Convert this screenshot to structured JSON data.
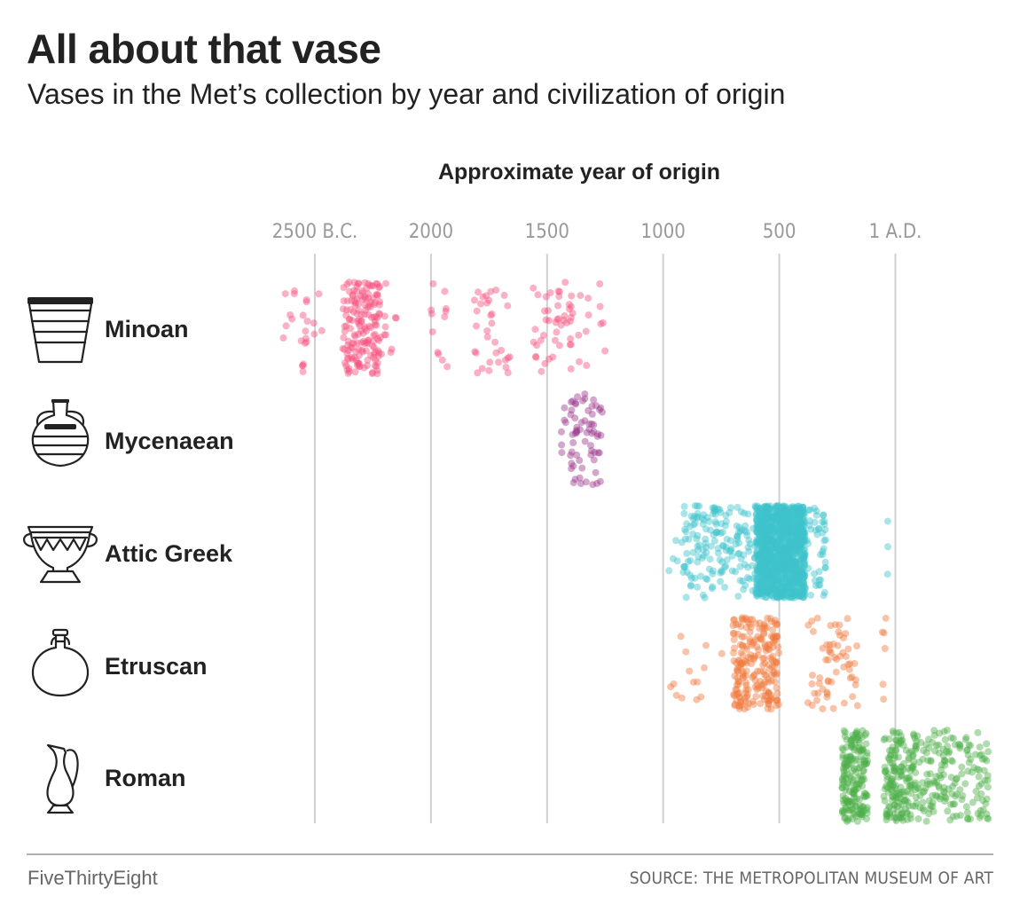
{
  "header": {
    "title": "All about that vase",
    "subtitle": "Vases in the Met’s collection by year and civilization of origin"
  },
  "footer": {
    "brand": "FiveThirtyEight",
    "source": "SOURCE: THE METROPOLITAN MUSEUM OF ART"
  },
  "chart_data": {
    "type": "scatter",
    "title": "All about that vase",
    "subtitle": "Vases in the Met’s collection by year and civilization of origin",
    "xlabel": "Approximate year of origin",
    "x_unit": "year (negative = B.C.)",
    "xlim": [
      -2650,
      400
    ],
    "grid": "vertical",
    "ticks": [
      {
        "value": -2500,
        "label": "2500 B.C."
      },
      {
        "value": -2000,
        "label": "2000"
      },
      {
        "value": -1500,
        "label": "1500"
      },
      {
        "value": -1000,
        "label": "1000"
      },
      {
        "value": -500,
        "label": "500"
      },
      {
        "value": 0,
        "label": "1 A.D."
      }
    ],
    "series": [
      {
        "name": "Minoan",
        "icon": "minoan-vase-icon",
        "color": "#f7537f",
        "count": 300,
        "clusters": [
          {
            "min": -2650,
            "max": -2470,
            "weight": 0.08
          },
          {
            "min": -2380,
            "max": -2220,
            "weight": 0.52
          },
          {
            "min": -2250,
            "max": -2150,
            "weight": 0.06
          },
          {
            "min": -2000,
            "max": -1930,
            "weight": 0.04
          },
          {
            "min": -1820,
            "max": -1650,
            "weight": 0.11
          },
          {
            "min": -1560,
            "max": -1390,
            "weight": 0.14
          },
          {
            "min": -1400,
            "max": -1250,
            "weight": 0.05
          }
        ]
      },
      {
        "name": "Mycenaean",
        "icon": "mycenaean-vase-icon",
        "color": "#9e3a8f",
        "count": 70,
        "clusters": [
          {
            "min": -1440,
            "max": -1260,
            "weight": 1.0
          }
        ]
      },
      {
        "name": "Attic Greek",
        "icon": "attic-greek-vase-icon",
        "color": "#3fc3cb",
        "count": 1400,
        "clusters": [
          {
            "min": -600,
            "max": -390,
            "weight": 0.84
          },
          {
            "min": -920,
            "max": -600,
            "weight": 0.12
          },
          {
            "min": -400,
            "max": -300,
            "weight": 0.035
          },
          {
            "min": -975,
            "max": -935,
            "weight": 0.003
          },
          {
            "min": -40,
            "max": -30,
            "weight": 0.002
          }
        ]
      },
      {
        "name": "Etruscan",
        "icon": "etruscan-vase-icon",
        "color": "#ef7b3d",
        "count": 300,
        "clusters": [
          {
            "min": -700,
            "max": -500,
            "weight": 0.72
          },
          {
            "min": -380,
            "max": -160,
            "weight": 0.2
          },
          {
            "min": -970,
            "max": -650,
            "weight": 0.06
          },
          {
            "min": -60,
            "max": -40,
            "weight": 0.02
          }
        ]
      },
      {
        "name": "Roman",
        "icon": "roman-vase-icon",
        "color": "#4daf4a",
        "count": 520,
        "clusters": [
          {
            "min": -230,
            "max": -120,
            "weight": 0.36
          },
          {
            "min": -50,
            "max": 90,
            "weight": 0.32
          },
          {
            "min": 90,
            "max": 400,
            "weight": 0.32
          }
        ]
      }
    ]
  }
}
